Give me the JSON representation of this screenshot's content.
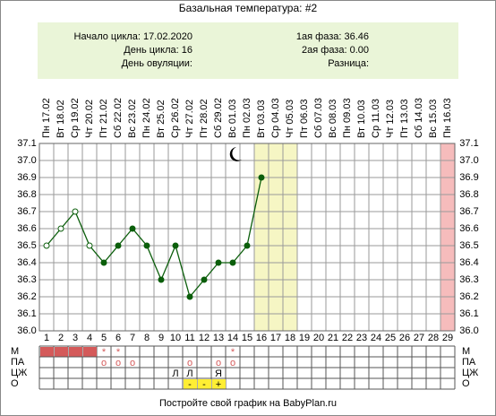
{
  "chart_data": {
    "type": "line",
    "title": "Базальная температура: #2",
    "info_left": [
      "Начало цикла: 17.02.2020",
      "День цикла: 16",
      "День овуляции:"
    ],
    "info_right": [
      "1ая фаза: 36.46",
      "2ая фаза: 0.00",
      "Разница:"
    ],
    "categories": [
      "Пн 17.02",
      "Вт 18.02",
      "Ср 19.02",
      "Чт 20.02",
      "Пт 21.02",
      "Сб 22.02",
      "Вс 23.02",
      "Пн 24.02",
      "Вт 25.02",
      "Ср 26.02",
      "Чт 27.02",
      "Пт 28.02",
      "Сб 29.02",
      "Вс 01.03",
      "Пн 02.03",
      "Вт 03.03",
      "Ср 04.03",
      "Чт 05.03",
      "Пт 06.03",
      "Сб 07.03",
      "Вс 08.03",
      "Пн 09.03",
      "Вт 10.03",
      "Ср 11.03",
      "Чт 12.03",
      "Пт 13.03",
      "Сб 14.03",
      "Вс 15.03",
      "Пн 16.03"
    ],
    "day_numbers": [
      1,
      2,
      3,
      4,
      5,
      6,
      7,
      8,
      9,
      10,
      11,
      12,
      13,
      14,
      15,
      16,
      17,
      18,
      19,
      20,
      21,
      22,
      23,
      24,
      25,
      26,
      27,
      28,
      29
    ],
    "values": [
      36.5,
      36.6,
      36.7,
      36.5,
      36.4,
      36.5,
      36.6,
      36.5,
      36.3,
      36.5,
      36.2,
      36.3,
      36.4,
      36.4,
      36.5,
      36.9,
      null,
      null,
      null,
      null,
      null,
      null,
      null,
      null,
      null,
      null,
      null,
      null,
      null
    ],
    "marker_open": [
      true,
      true,
      true,
      true,
      false,
      false,
      false,
      false,
      false,
      false,
      false,
      false,
      false,
      false,
      false,
      false,
      false,
      false,
      false,
      false,
      false,
      false,
      false,
      false,
      false,
      false,
      false,
      false,
      false
    ],
    "color": "#0b5e0b",
    "ylim": [
      36.0,
      37.1
    ],
    "yticks": [
      {
        "value": 36.0,
        "label": "36.0"
      },
      36.1,
      36.2,
      36.3,
      36.4,
      36.5,
      36.6,
      36.7,
      36.8,
      36.9,
      {
        "value": 37.0,
        "label": "37.0"
      },
      37.1
    ],
    "grid": true,
    "highlight_columns": [
      {
        "from": 16,
        "to": 18,
        "color": "#f6f6c4"
      },
      {
        "from": 29,
        "to": 29,
        "color": "#f6bcbc"
      }
    ],
    "rows": [
      {
        "label": "М",
        "filled": [
          1,
          2,
          3,
          4
        ],
        "fill": "#d45a5a",
        "text_color": "#d45a5a",
        "cells": [
          null,
          null,
          null,
          null,
          "*",
          "*",
          null,
          null,
          null,
          null,
          null,
          null,
          null,
          "*",
          null,
          null,
          null,
          null,
          null,
          null,
          null,
          null,
          null,
          null,
          null,
          null,
          null,
          null,
          null
        ]
      },
      {
        "label": "ПА",
        "filled": [],
        "fill": "#ffffff",
        "text_color": "#d45a5a",
        "cells": [
          null,
          null,
          null,
          null,
          "о",
          "о",
          "о",
          null,
          null,
          null,
          "о",
          null,
          "о",
          "о",
          null,
          null,
          null,
          null,
          null,
          null,
          null,
          null,
          null,
          null,
          null,
          null,
          null,
          null,
          null
        ]
      },
      {
        "label": "ЦЖ",
        "filled": [],
        "fill": "#ffffff",
        "text_color": "#000000",
        "cells": [
          null,
          null,
          null,
          null,
          null,
          null,
          null,
          null,
          null,
          "Л",
          "Л",
          null,
          "Я",
          null,
          null,
          null,
          null,
          null,
          null,
          null,
          null,
          null,
          null,
          null,
          null,
          null,
          null,
          null,
          null
        ]
      },
      {
        "label": "О",
        "filled": [
          11,
          12,
          13
        ],
        "fill": "#ffee33",
        "text_color": "#000000",
        "cells": [
          null,
          null,
          null,
          null,
          null,
          null,
          null,
          null,
          null,
          null,
          "-",
          "-",
          "+",
          null,
          null,
          null,
          null,
          null,
          null,
          null,
          null,
          null,
          null,
          null,
          null,
          null,
          null,
          null,
          null
        ]
      }
    ],
    "footer": "Постройте свой график на BabyPlan.ru"
  }
}
